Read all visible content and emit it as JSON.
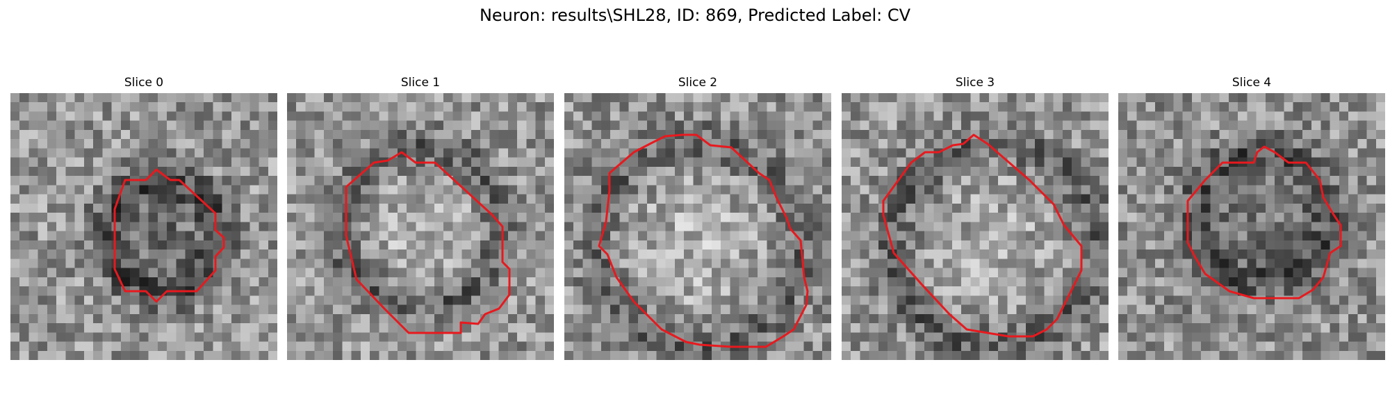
{
  "figure": {
    "title": "Neuron: results\\SHL28, ID: 869, Predicted Label: CV"
  },
  "panels": [
    {
      "title": "Slice 0"
    },
    {
      "title": "Slice 1"
    },
    {
      "title": "Slice 2"
    },
    {
      "title": "Slice 3"
    },
    {
      "title": "Slice 4"
    }
  ],
  "colors": {
    "contour": "#e8191e",
    "colormap": "gray"
  }
}
